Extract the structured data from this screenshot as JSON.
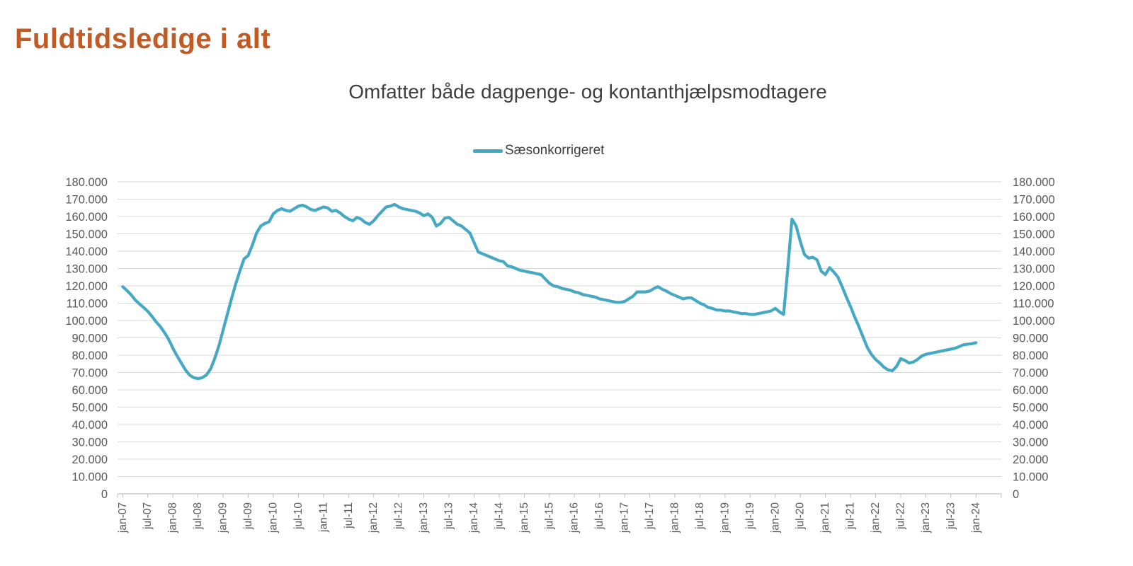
{
  "header": {
    "title": "Fuldtidsledige i alt",
    "title_color": "#C25A24"
  },
  "chart": {
    "subtitle": "Omfatter både dagpenge- og kontanthjælpsmodtagere",
    "subtitle_color": "#3F3F3F",
    "legend": {
      "label": "Sæsonkorrigeret",
      "marker_color": "#45A9C6",
      "label_color": "#404040"
    }
  },
  "chart_data": {
    "type": "line",
    "title": "Omfatter både dagpenge- og kontanthjælpsmodtagere",
    "series_name": "Sæsonkorrigeret",
    "frequency": "monthly",
    "x_start": "jan-07",
    "x_end": "jan-24",
    "xlabel": "",
    "ylabel": "",
    "ylim": [
      0,
      180000
    ],
    "y_step": 10000,
    "grid": true,
    "legend_position": "top-center",
    "line_color": "#45A9C6",
    "grid_color": "#D9D9D9",
    "axis_color": "#BFBFBF",
    "tick_label_color": "#595959",
    "y_tick_labels": [
      "180.000",
      "170.000",
      "160.000",
      "150.000",
      "140.000",
      "130.000",
      "120.000",
      "110.000",
      "100.000",
      "90.000",
      "80.000",
      "70.000",
      "60.000",
      "50.000",
      "40.000",
      "30.000",
      "20.000",
      "10.000",
      "0"
    ],
    "x_tick_labels": [
      "jan-07",
      "jul-07",
      "jan-08",
      "jul-08",
      "jan-09",
      "jul-09",
      "jan-10",
      "jul-10",
      "jan-11",
      "jul-11",
      "jan-12",
      "jul-12",
      "jan-13",
      "jul-13",
      "jan-14",
      "jul-14",
      "jan-15",
      "jul-15",
      "jan-16",
      "jul-16",
      "jan-17",
      "jul-17",
      "jan-18",
      "jul-18",
      "jan-19",
      "jul-19",
      "jan-20",
      "jul-20",
      "jan-21",
      "jul-21",
      "jan-22",
      "jul-22",
      "jan-23",
      "jul-23",
      "jan-24"
    ],
    "values": [
      119500,
      117300,
      114900,
      111800,
      109600,
      107500,
      105300,
      102400,
      99200,
      96400,
      93000,
      89000,
      84000,
      79500,
      75500,
      71500,
      68500,
      67000,
      66500,
      67000,
      68500,
      72000,
      78000,
      85500,
      94500,
      103500,
      112500,
      121000,
      128500,
      135500,
      137500,
      143500,
      150500,
      154500,
      156000,
      157000,
      161500,
      163500,
      164500,
      163500,
      163000,
      164500,
      166000,
      166500,
      165500,
      164000,
      163500,
      164500,
      165500,
      165000,
      163000,
      163500,
      162000,
      160000,
      158500,
      157500,
      159500,
      158500,
      156500,
      155500,
      157500,
      160500,
      163000,
      165500,
      166000,
      167000,
      165500,
      164500,
      164000,
      163500,
      163000,
      162000,
      160500,
      161500,
      159500,
      154500,
      156000,
      159000,
      159500,
      157500,
      155500,
      154500,
      152500,
      150500,
      145000,
      139500,
      138500,
      137500,
      136500,
      135500,
      134500,
      134000,
      131500,
      131000,
      130000,
      129000,
      128500,
      128000,
      127500,
      127000,
      126500,
      124000,
      121500,
      120000,
      119500,
      118500,
      118000,
      117500,
      116500,
      116000,
      115000,
      114500,
      114000,
      113500,
      112500,
      112000,
      111500,
      111000,
      110500,
      110500,
      111000,
      112500,
      114000,
      116500,
      116500,
      116500,
      117000,
      118500,
      119500,
      118000,
      117000,
      115500,
      114500,
      113500,
      112500,
      113000,
      113000,
      111500,
      110000,
      109000,
      107500,
      107000,
      106000,
      106000,
      105500,
      105500,
      105000,
      104500,
      104000,
      104000,
      103500,
      103500,
      104000,
      104500,
      105000,
      105500,
      107000,
      105000,
      103500,
      130000,
      158500,
      154500,
      145500,
      138000,
      136000,
      136500,
      135000,
      128500,
      126500,
      130500,
      128000,
      125000,
      119500,
      113500,
      108000,
      102000,
      96500,
      90500,
      84500,
      80500,
      77500,
      75500,
      73000,
      71500,
      71000,
      73500,
      78000,
      77000,
      75500,
      76000,
      77500,
      79500,
      80500,
      81000,
      81500,
      82000,
      82500,
      83000,
      83500,
      84000,
      85000,
      86000,
      86300,
      86600,
      87200
    ]
  }
}
